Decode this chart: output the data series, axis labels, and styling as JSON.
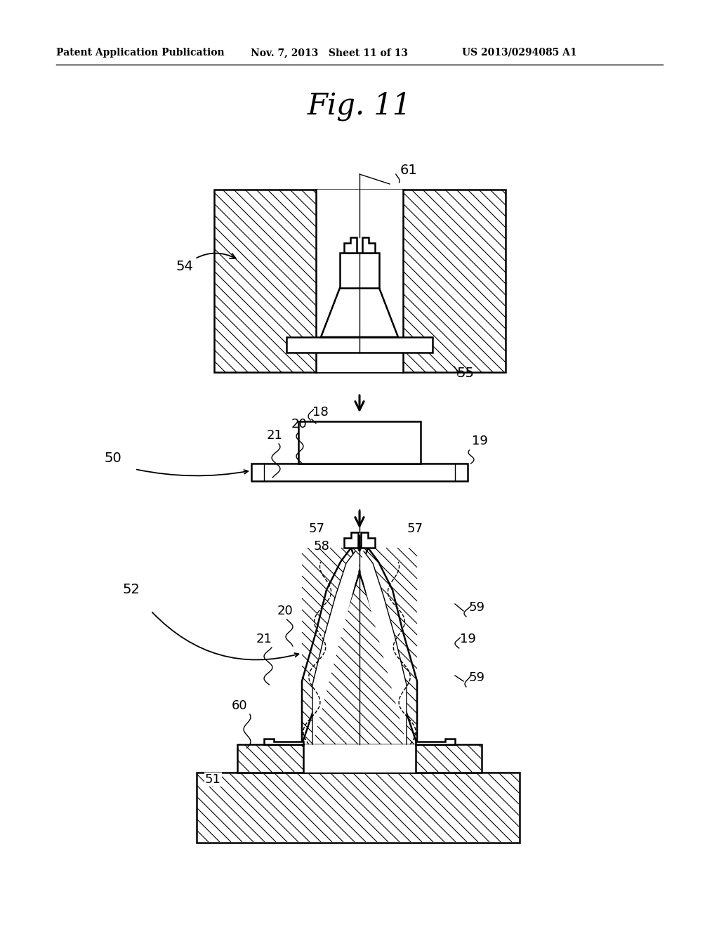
{
  "bg_color": "#ffffff",
  "lc": "#000000",
  "fig_label": "Fig. 11",
  "header_left": "Patent Application Publication",
  "header_mid": "Nov. 7, 2013   Sheet 11 of 13",
  "header_right": "US 2013/0294085 A1"
}
